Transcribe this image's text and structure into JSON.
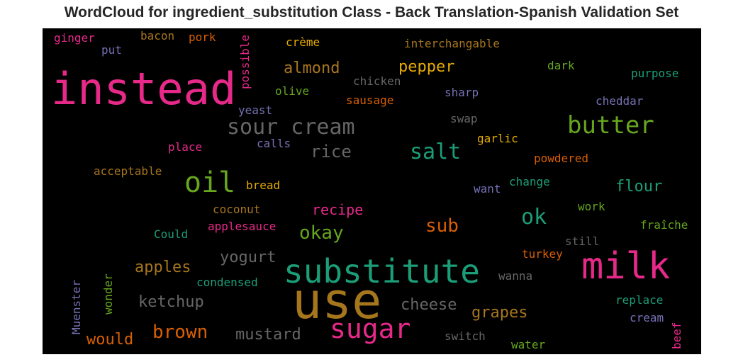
{
  "title": "WordCloud for ingredient_substitution Class - Back Translation-Spanish Validation Set",
  "words": [
    {
      "text": "instead",
      "color": "#e7298a",
      "rel_size": 1.0
    },
    {
      "text": "use",
      "color": "#a6761d",
      "rel_size": 1.0
    },
    {
      "text": "substitute",
      "color": "#1b9e77",
      "rel_size": 0.85
    },
    {
      "text": "milk",
      "color": "#e7298a",
      "rel_size": 0.85
    },
    {
      "text": "sugar",
      "color": "#e7298a",
      "rel_size": 0.6
    },
    {
      "text": "butter",
      "color": "#66a61e",
      "rel_size": 0.55
    },
    {
      "text": "oil",
      "color": "#66a61e",
      "rel_size": 0.6
    },
    {
      "text": "sour cream",
      "color": "#666666",
      "rel_size": 0.5
    },
    {
      "text": "salt",
      "color": "#1b9e77",
      "rel_size": 0.5
    },
    {
      "text": "ok",
      "color": "#1b9e77",
      "rel_size": 0.5
    },
    {
      "text": "rice",
      "color": "#666666",
      "rel_size": 0.4
    },
    {
      "text": "brown",
      "color": "#d95f02",
      "rel_size": 0.45
    },
    {
      "text": "okay",
      "color": "#66a61e",
      "rel_size": 0.4
    },
    {
      "text": "sub",
      "color": "#d95f02",
      "rel_size": 0.4
    },
    {
      "text": "almond",
      "color": "#a6761d",
      "rel_size": 0.35
    },
    {
      "text": "pepper",
      "color": "#e6ab02",
      "rel_size": 0.35
    },
    {
      "text": "cheese",
      "color": "#666666",
      "rel_size": 0.35
    },
    {
      "text": "grapes",
      "color": "#a6761d",
      "rel_size": 0.35
    },
    {
      "text": "mustard",
      "color": "#666666",
      "rel_size": 0.35
    },
    {
      "text": "ketchup",
      "color": "#666666",
      "rel_size": 0.33
    },
    {
      "text": "apples",
      "color": "#a6761d",
      "rel_size": 0.33
    },
    {
      "text": "yogurt",
      "color": "#666666",
      "rel_size": 0.33
    },
    {
      "text": "would",
      "color": "#d95f02",
      "rel_size": 0.33
    },
    {
      "text": "flour",
      "color": "#1b9e77",
      "rel_size": 0.33
    },
    {
      "text": "recipe",
      "color": "#e7298a",
      "rel_size": 0.3
    },
    {
      "text": "ginger",
      "color": "#e7298a",
      "rel_size": 0.25
    },
    {
      "text": "bacon",
      "color": "#a6761d",
      "rel_size": 0.25
    },
    {
      "text": "pork",
      "color": "#d95f02",
      "rel_size": 0.25
    },
    {
      "text": "put",
      "color": "#7570b3",
      "rel_size": 0.25
    },
    {
      "text": "possible",
      "color": "#e7298a",
      "rel_size": 0.25
    },
    {
      "text": "crème",
      "color": "#e6ab02",
      "rel_size": 0.25
    },
    {
      "text": "interchangable",
      "color": "#a6761d",
      "rel_size": 0.25
    },
    {
      "text": "dark",
      "color": "#66a61e",
      "rel_size": 0.25
    },
    {
      "text": "purpose",
      "color": "#1b9e77",
      "rel_size": 0.25
    },
    {
      "text": "chicken",
      "color": "#666666",
      "rel_size": 0.25
    },
    {
      "text": "olive",
      "color": "#66a61e",
      "rel_size": 0.25
    },
    {
      "text": "sharp",
      "color": "#7570b3",
      "rel_size": 0.25
    },
    {
      "text": "sausage",
      "color": "#d95f02",
      "rel_size": 0.25
    },
    {
      "text": "cheddar",
      "color": "#7570b3",
      "rel_size": 0.25
    },
    {
      "text": "yeast",
      "color": "#7570b3",
      "rel_size": 0.25
    },
    {
      "text": "swap",
      "color": "#666666",
      "rel_size": 0.25
    },
    {
      "text": "garlic",
      "color": "#e6ab02",
      "rel_size": 0.25
    },
    {
      "text": "place",
      "color": "#e7298a",
      "rel_size": 0.25
    },
    {
      "text": "calls",
      "color": "#7570b3",
      "rel_size": 0.25
    },
    {
      "text": "powdered",
      "color": "#d95f02",
      "rel_size": 0.25
    },
    {
      "text": "acceptable",
      "color": "#a6761d",
      "rel_size": 0.25
    },
    {
      "text": "bread",
      "color": "#e6ab02",
      "rel_size": 0.25
    },
    {
      "text": "change",
      "color": "#1b9e77",
      "rel_size": 0.25
    },
    {
      "text": "want",
      "color": "#7570b3",
      "rel_size": 0.25
    },
    {
      "text": "coconut",
      "color": "#a6761d",
      "rel_size": 0.25
    },
    {
      "text": "work",
      "color": "#66a61e",
      "rel_size": 0.25
    },
    {
      "text": "Could",
      "color": "#1b9e77",
      "rel_size": 0.25
    },
    {
      "text": "applesauce",
      "color": "#e7298a",
      "rel_size": 0.25
    },
    {
      "text": "fraîche",
      "color": "#66a61e",
      "rel_size": 0.25
    },
    {
      "text": "still",
      "color": "#666666",
      "rel_size": 0.25
    },
    {
      "text": "turkey",
      "color": "#d95f02",
      "rel_size": 0.25
    },
    {
      "text": "wanna",
      "color": "#666666",
      "rel_size": 0.25
    },
    {
      "text": "Muenster",
      "color": "#7570b3",
      "rel_size": 0.25
    },
    {
      "text": "wonder",
      "color": "#66a61e",
      "rel_size": 0.25
    },
    {
      "text": "condensed",
      "color": "#1b9e77",
      "rel_size": 0.25
    },
    {
      "text": "replace",
      "color": "#1b9e77",
      "rel_size": 0.25
    },
    {
      "text": "cream",
      "color": "#7570b3",
      "rel_size": 0.25
    },
    {
      "text": "beef",
      "color": "#e7298a",
      "rel_size": 0.25
    },
    {
      "text": "switch",
      "color": "#666666",
      "rel_size": 0.25
    },
    {
      "text": "water",
      "color": "#66a61e",
      "rel_size": 0.25
    }
  ]
}
